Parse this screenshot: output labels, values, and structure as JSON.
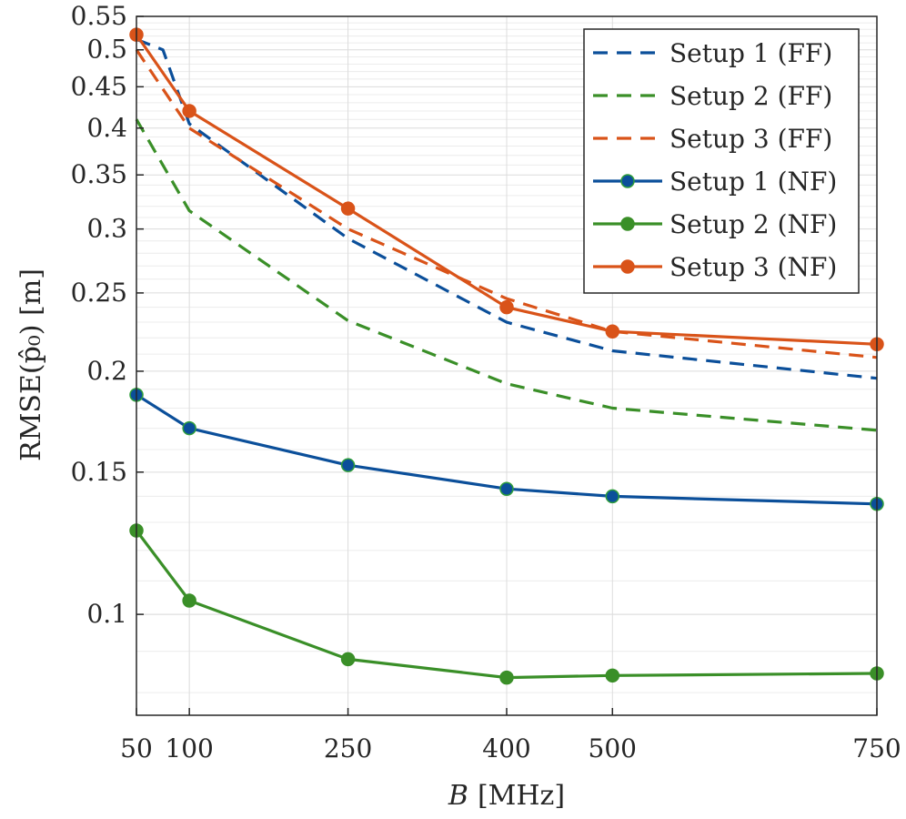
{
  "chart_data": {
    "type": "line",
    "title": "",
    "xlabel_var": "B",
    "xlabel_unit": "[MHz]",
    "ylabel": "RMSE(p̂₀) [m]",
    "yscale": "log",
    "x": [
      50,
      100,
      250,
      400,
      500,
      750
    ],
    "xlim": [
      50,
      750
    ],
    "ylim": [
      0.075,
      0.55
    ],
    "xticks": [
      50,
      100,
      250,
      400,
      500,
      750
    ],
    "xtick_labels": [
      "50",
      "100",
      "250",
      "400",
      "500",
      "750"
    ],
    "yticks": [
      0.1,
      0.15,
      0.2,
      0.25,
      0.3,
      0.35,
      0.4,
      0.45,
      0.5,
      0.55
    ],
    "ytick_labels": [
      "0.1",
      "0.15",
      "0.2",
      "0.25",
      "0.3",
      "0.35",
      "0.4",
      "0.45",
      "0.5",
      "0.55"
    ],
    "grid": true,
    "legend_position": "top-right",
    "series": [
      {
        "name": "Setup 1 (FF)",
        "style": "dashed",
        "marker": false,
        "color": "#0b4f9a",
        "x": [
          50,
          75,
          100,
          250,
          400,
          500,
          750
        ],
        "values": [
          0.515,
          0.5,
          0.405,
          0.292,
          0.23,
          0.212,
          0.196
        ]
      },
      {
        "name": "Setup 2 (FF)",
        "style": "dashed",
        "marker": false,
        "color": "#3a8f28",
        "x": [
          50,
          100,
          250,
          400,
          500,
          750
        ],
        "values": [
          0.41,
          0.316,
          0.231,
          0.193,
          0.18,
          0.169
        ]
      },
      {
        "name": "Setup 3 (FF)",
        "style": "dashed",
        "marker": false,
        "color": "#d95319",
        "x": [
          50,
          100,
          250,
          400,
          500,
          750
        ],
        "values": [
          0.5,
          0.4,
          0.3,
          0.246,
          0.224,
          0.208
        ]
      },
      {
        "name": "Setup 1 (NF)",
        "style": "solid",
        "marker": true,
        "color": "#0b4f9a",
        "x": [
          50,
          100,
          250,
          400,
          500,
          750
        ],
        "values": [
          0.187,
          0.17,
          0.153,
          0.143,
          0.14,
          0.137
        ]
      },
      {
        "name": "Setup 2 (NF)",
        "style": "solid",
        "marker": true,
        "color": "#3a8f28",
        "x": [
          50,
          100,
          250,
          400,
          500,
          750
        ],
        "values": [
          0.127,
          0.104,
          0.088,
          0.0835,
          0.084,
          0.0845
        ]
      },
      {
        "name": "Setup 3 (NF)",
        "style": "solid",
        "marker": true,
        "color": "#d95319",
        "x": [
          50,
          100,
          250,
          400,
          500,
          750
        ],
        "values": [
          0.522,
          0.42,
          0.318,
          0.24,
          0.224,
          0.216
        ]
      }
    ]
  }
}
